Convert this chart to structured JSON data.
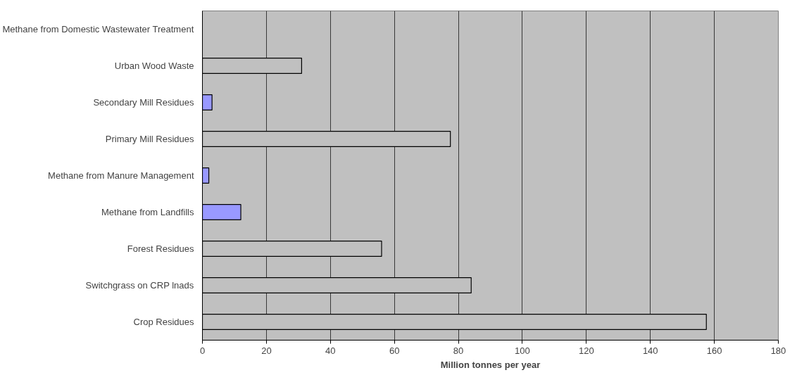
{
  "chart_data": {
    "type": "bar",
    "orientation": "horizontal",
    "xlabel": "Million tonnes per year",
    "categories": [
      "Methane from Domestic Wastewater Treatment",
      "Urban Wood Waste",
      "Secondary Mill Residues",
      "Primary Mill Residues",
      "Methane from Manure Management",
      "Methane from Landfills",
      "Forest Residues",
      "Switchgrass on CRP lnads",
      "Crop Residues"
    ],
    "values": [
      null,
      31,
      3,
      77.5,
      2,
      12,
      56,
      84,
      157.5
    ],
    "colors": [
      "#c0c0c0",
      "#c0c0c0",
      "#9999ff",
      "#c0c0c0",
      "#9999ff",
      "#9999ff",
      "#c0c0c0",
      "#c0c0c0",
      "#c0c0c0"
    ],
    "xlim": [
      0,
      180
    ],
    "xticks": [
      0,
      20,
      40,
      60,
      80,
      100,
      120,
      140,
      160,
      180
    ],
    "grid": "x"
  }
}
